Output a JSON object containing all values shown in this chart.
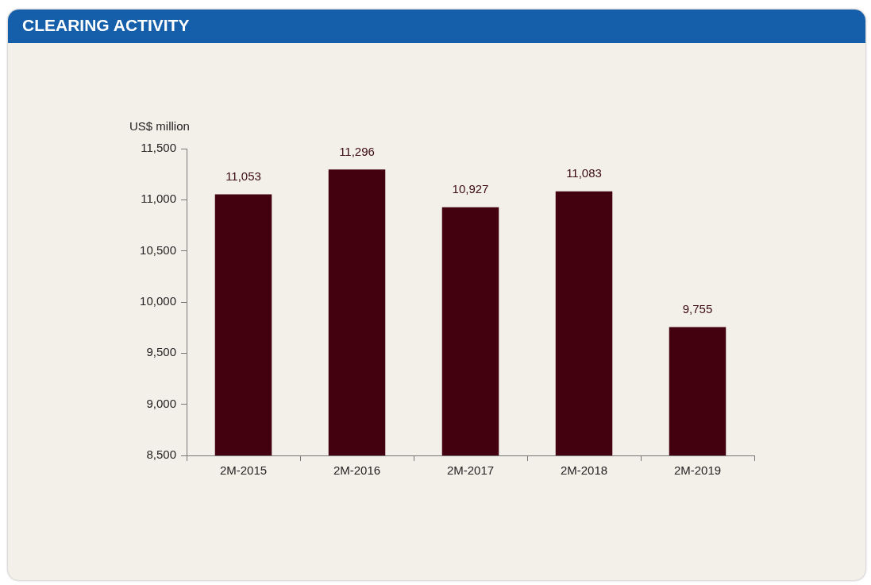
{
  "chart_data": {
    "type": "bar",
    "title": "CLEARING ACTIVITY",
    "ylabel": "US$ million",
    "categories": [
      "2M-2015",
      "2M-2016",
      "2M-2017",
      "2M-2018",
      "2M-2019"
    ],
    "values": [
      11053,
      11296,
      10927,
      11083,
      9755
    ],
    "color": "#43000f",
    "value_labels": [
      "11,053",
      "11,296",
      "10,927",
      "11,083",
      "9,755"
    ],
    "ylim": [
      8500,
      11500
    ],
    "yticks": [
      {
        "value": 8500,
        "label": "8,500"
      },
      {
        "value": 9000,
        "label": "9,000"
      },
      {
        "value": 9500,
        "label": "9,500"
      },
      {
        "value": 10000,
        "label": "10,000"
      },
      {
        "value": 10500,
        "label": "10,500"
      },
      {
        "value": 11000,
        "label": "11,000"
      },
      {
        "value": 11500,
        "label": "11,500"
      }
    ],
    "grid": false,
    "legend": false
  }
}
